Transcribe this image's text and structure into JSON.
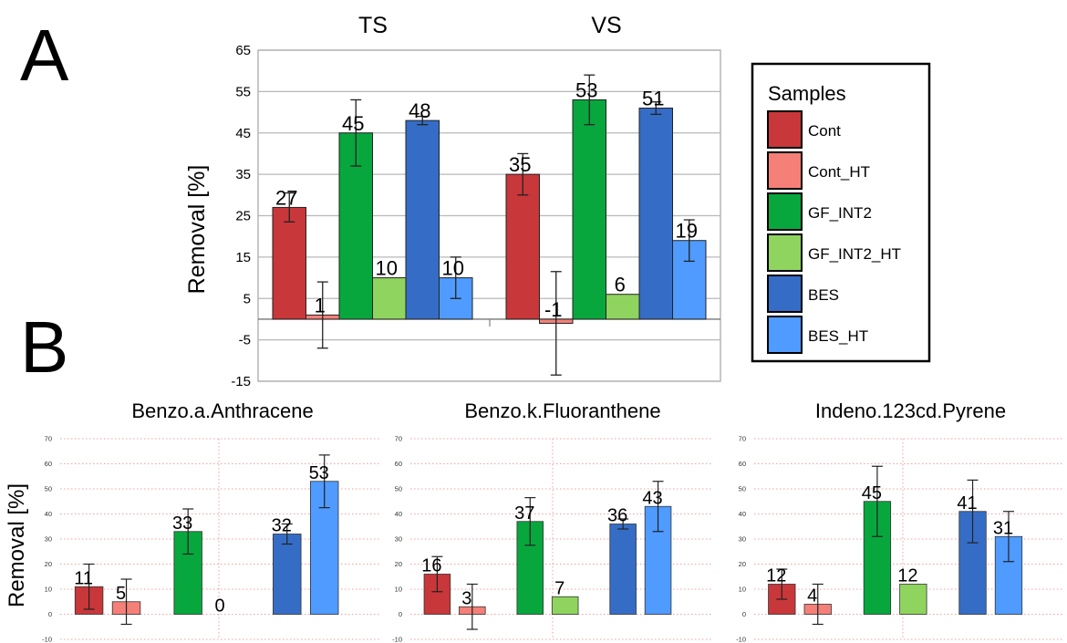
{
  "panel_labels": {
    "a": "A",
    "b": "B"
  },
  "legend": {
    "title": "Samples",
    "entries": [
      {
        "label": "Cont",
        "color": "#c8373a"
      },
      {
        "label": "Cont_HT",
        "color": "#f58078"
      },
      {
        "label": "GF_INT2",
        "color": "#08a73e"
      },
      {
        "label": "GF_INT2_HT",
        "color": "#8fd45e"
      },
      {
        "label": "BES",
        "color": "#356dc6"
      },
      {
        "label": "BES_HT",
        "color": "#4f9bff"
      }
    ]
  },
  "chart_data": [
    {
      "type": "bar",
      "panel": "A",
      "ylabel": "Removal [%]",
      "ylim": [
        -15,
        65
      ],
      "yticks": [
        "-15",
        "-5",
        "5",
        "15",
        "25",
        "35",
        "45",
        "55",
        "65"
      ],
      "groups": [
        "TS",
        "VS"
      ],
      "series": [
        {
          "name": "Cont",
          "values": [
            27,
            35
          ],
          "labels": [
            "27",
            "35"
          ],
          "errors": [
            3.5,
            5
          ]
        },
        {
          "name": "Cont_HT",
          "values": [
            1,
            -1
          ],
          "labels": [
            "1",
            "-1"
          ],
          "errors": [
            8,
            12.5
          ]
        },
        {
          "name": "GF_INT2",
          "values": [
            45,
            53
          ],
          "labels": [
            "45",
            "53"
          ],
          "errors": [
            8,
            6
          ]
        },
        {
          "name": "GF_INT2_HT",
          "values": [
            10,
            6
          ],
          "labels": [
            "10",
            "6"
          ],
          "errors": [
            0,
            0
          ]
        },
        {
          "name": "BES",
          "values": [
            48,
            51
          ],
          "labels": [
            "48",
            "51"
          ],
          "errors": [
            1,
            1.5
          ]
        },
        {
          "name": "BES_HT",
          "values": [
            10,
            19
          ],
          "labels": [
            "10",
            "19"
          ],
          "errors": [
            5,
            5
          ]
        }
      ]
    },
    {
      "type": "bar",
      "panel": "B",
      "title": "Benzo.a.Anthracene",
      "ylabel": "Removal [%]",
      "ylim": [
        -10,
        70
      ],
      "yticks": [
        "-10",
        "0",
        "10",
        "20",
        "30",
        "40",
        "50",
        "60",
        "70"
      ],
      "categories": [
        "Cont",
        "Cont_HT",
        "GF_INT2",
        "GF_INT2_HT",
        "BES",
        "BES_HT"
      ],
      "values": [
        11,
        5,
        33,
        0,
        32,
        53
      ],
      "labels": [
        "11",
        "5",
        "33",
        "0",
        "32",
        "53"
      ],
      "errors": [
        9,
        9,
        9,
        0,
        4,
        10.5
      ]
    },
    {
      "type": "bar",
      "panel": "B",
      "title": "Benzo.k.Fluoranthene",
      "ylim": [
        -10,
        70
      ],
      "yticks": [
        "-10",
        "0",
        "10",
        "20",
        "30",
        "40",
        "50",
        "60",
        "70"
      ],
      "categories": [
        "Cont",
        "Cont_HT",
        "GF_INT2",
        "GF_INT2_HT",
        "BES",
        "BES_HT"
      ],
      "values": [
        16,
        3,
        37,
        7,
        36,
        43
      ],
      "labels": [
        "16",
        "3",
        "37",
        "7",
        "36",
        "43"
      ],
      "errors": [
        7,
        9,
        9.5,
        0,
        2,
        10
      ]
    },
    {
      "type": "bar",
      "panel": "B",
      "title": "Indeno.123cd.Pyrene",
      "ylim": [
        -10,
        70
      ],
      "yticks": [
        "-10",
        "0",
        "10",
        "20",
        "30",
        "40",
        "50",
        "60",
        "70"
      ],
      "categories": [
        "Cont",
        "Cont_HT",
        "GF_INT2",
        "GF_INT2_HT",
        "BES",
        "BES_HT"
      ],
      "values": [
        12,
        4,
        45,
        12,
        41,
        31
      ],
      "labels": [
        "12",
        "4",
        "45",
        "12",
        "41",
        "31"
      ],
      "errors": [
        6,
        8,
        14,
        0,
        12.5,
        10
      ]
    }
  ]
}
